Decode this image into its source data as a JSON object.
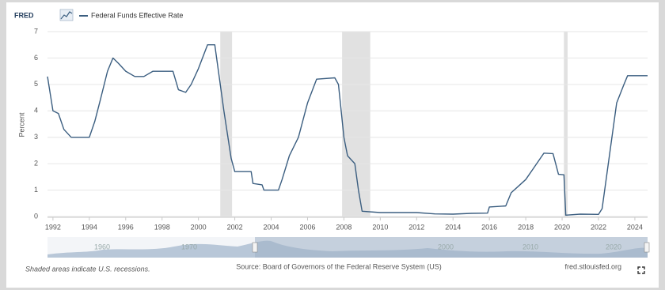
{
  "logo": "FRED",
  "footer": {
    "note": "Shaded areas indicate U.S. recessions.",
    "source": "Source: Board of Governors of the Federal Reserve System (US)",
    "site": "fred.stlouisfed.org"
  },
  "navigator": {
    "labels": [
      "1960",
      "1970",
      "2000",
      "2010",
      "2020"
    ]
  },
  "chart_data": {
    "type": "line",
    "ylabel": "Percent",
    "x": [
      1991.7,
      1992.0,
      1992.3,
      1992.6,
      1993.0,
      1993.5,
      1994.0,
      1994.3,
      1994.6,
      1995.0,
      1995.3,
      1995.6,
      1996.0,
      1996.5,
      1997.0,
      1997.5,
      1998.0,
      1998.6,
      1998.9,
      1999.3,
      1999.6,
      2000.0,
      2000.5,
      2000.9,
      2001.1,
      2001.4,
      2001.8,
      2002.0,
      2002.9,
      2003.0,
      2003.5,
      2003.6,
      2004.4,
      2004.6,
      2005.0,
      2005.5,
      2006.0,
      2006.5,
      2007.5,
      2007.7,
      2008.0,
      2008.2,
      2008.6,
      2008.8,
      2009.0,
      2010.0,
      2011.0,
      2012.0,
      2013.0,
      2014.0,
      2015.0,
      2015.9,
      2016.0,
      2016.9,
      2017.2,
      2017.6,
      2018.0,
      2018.5,
      2019.0,
      2019.5,
      2019.8,
      2020.1,
      2020.2,
      2021.0,
      2022.0,
      2022.2,
      2022.6,
      2023.0,
      2023.4,
      2023.6,
      2024.7
    ],
    "series": [
      {
        "name": "Federal Funds Effective Rate",
        "color": "#3b5e80",
        "values": [
          5.3,
          4.0,
          3.9,
          3.3,
          3.0,
          3.0,
          3.0,
          3.6,
          4.4,
          5.5,
          6.0,
          5.8,
          5.5,
          5.3,
          5.3,
          5.5,
          5.5,
          5.5,
          4.8,
          4.7,
          5.0,
          5.6,
          6.5,
          6.5,
          5.5,
          4.0,
          2.2,
          1.7,
          1.7,
          1.25,
          1.2,
          1.0,
          1.0,
          1.4,
          2.3,
          3.0,
          4.3,
          5.2,
          5.25,
          5.0,
          3.0,
          2.3,
          2.0,
          1.0,
          0.2,
          0.15,
          0.15,
          0.15,
          0.1,
          0.09,
          0.12,
          0.13,
          0.36,
          0.4,
          0.9,
          1.15,
          1.4,
          1.9,
          2.4,
          2.38,
          1.6,
          1.58,
          0.05,
          0.09,
          0.08,
          0.3,
          2.3,
          4.3,
          5.0,
          5.33,
          5.33
        ]
      }
    ],
    "recessions": [
      [
        2001.2,
        2001.85
      ],
      [
        2007.9,
        2009.45
      ],
      [
        2020.1,
        2020.3
      ]
    ],
    "recession_color": "#e1e1e1",
    "xlim": [
      1991.7,
      2024.7
    ],
    "xticks": [
      1992,
      1994,
      1996,
      1998,
      2000,
      2002,
      2004,
      2006,
      2008,
      2010,
      2012,
      2014,
      2016,
      2018,
      2020,
      2022,
      2024
    ],
    "ylim": [
      0,
      7
    ],
    "yticks": [
      0,
      1,
      2,
      3,
      4,
      5,
      6,
      7
    ],
    "grid": true
  }
}
